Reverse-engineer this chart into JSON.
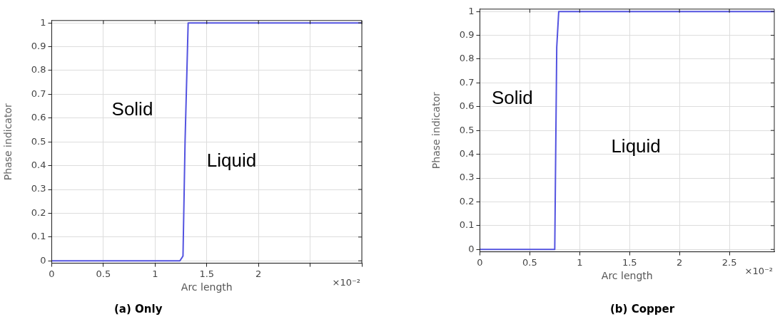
{
  "chart_data": [
    {
      "type": "line",
      "title": "(a) Only",
      "xlabel": "Arc length",
      "ylabel": "Phase indicator",
      "x": [
        0,
        1.24,
        1.27,
        1.29,
        1.32,
        3.0
      ],
      "series": [
        {
          "color": "#5353e0",
          "values": [
            0,
            0,
            0.02,
            0.5,
            1,
            1
          ]
        }
      ],
      "xlim": [
        0,
        3.0
      ],
      "xticks": [
        0,
        0.5,
        1,
        1.5,
        2,
        {
          "value": 2.5,
          "label": null
        },
        {
          "value": 3.0,
          "label": null
        }
      ],
      "ylim": [
        -0.01,
        1.01
      ],
      "yticks": [
        0,
        0.1,
        0.2,
        0.3,
        0.4,
        0.5,
        0.6,
        0.7,
        0.8,
        0.9,
        1
      ],
      "grid": true,
      "marker": "none",
      "line_style": "solid",
      "annotations": [
        "Solid",
        "Liquid",
        "×10⁻²"
      ]
    },
    {
      "type": "line",
      "title": "(b) Copper",
      "xlabel": "Arc length",
      "ylabel": "Phase indicator",
      "x": [
        0,
        0.75,
        0.77,
        0.79,
        2.95
      ],
      "series": [
        {
          "color": "#5353e0",
          "values": [
            0,
            0,
            0.85,
            1,
            1
          ]
        }
      ],
      "xlim": [
        0,
        2.95
      ],
      "xticks": [
        0,
        0.5,
        1,
        1.5,
        2,
        2.5
      ],
      "ylim": [
        -0.01,
        1.01
      ],
      "yticks": [
        0,
        0.1,
        0.2,
        0.3,
        0.4,
        0.5,
        0.6,
        0.7,
        0.8,
        0.9,
        1
      ],
      "grid": true,
      "marker": "none",
      "line_style": "solid",
      "annotations": [
        "Solid",
        "Liquid",
        "×10⁻²"
      ]
    }
  ]
}
